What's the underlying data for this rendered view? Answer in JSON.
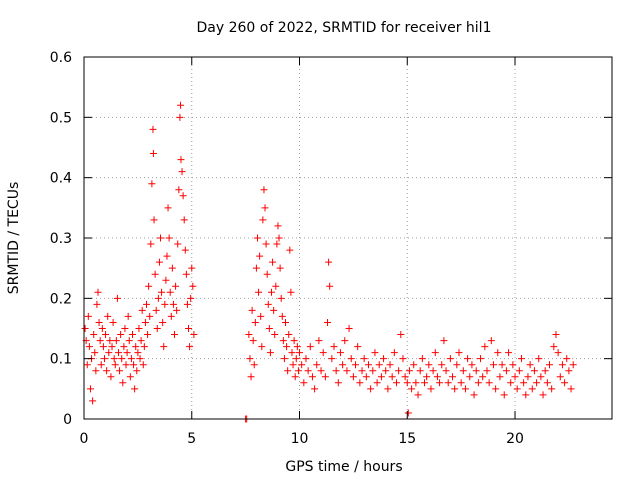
{
  "chart_data": {
    "type": "scatter",
    "title": "Day 260 of 2022, SRMTID for receiver hil1",
    "xlabel": "GPS time / hours",
    "ylabel": "SRMTID / TECUs",
    "xlim": [
      0,
      24.5
    ],
    "ylim": [
      0,
      0.6
    ],
    "xticks": [
      0,
      5,
      10,
      15,
      20
    ],
    "xtick_labels": [
      "0",
      "5",
      "10",
      "15",
      "20"
    ],
    "yticks": [
      0,
      0.1,
      0.2,
      0.3,
      0.4,
      0.5,
      0.6
    ],
    "ytick_labels": [
      "0",
      "0.1",
      "0.2",
      "0.3",
      "0.4",
      "0.5",
      "0.6"
    ],
    "grid": true,
    "marker": "+",
    "color": "#ff0000",
    "series": [
      {
        "name": "hil1",
        "points": [
          [
            0.05,
            0.15
          ],
          [
            0.1,
            0.13
          ],
          [
            0.15,
            0.09
          ],
          [
            0.2,
            0.17
          ],
          [
            0.25,
            0.12
          ],
          [
            0.3,
            0.05
          ],
          [
            0.35,
            0.1
          ],
          [
            0.4,
            0.03
          ],
          [
            0.45,
            0.14
          ],
          [
            0.5,
            0.11
          ],
          [
            0.55,
            0.08
          ],
          [
            0.6,
            0.19
          ],
          [
            0.65,
            0.21
          ],
          [
            0.7,
            0.16
          ],
          [
            0.75,
            0.13
          ],
          [
            0.8,
            0.09
          ],
          [
            0.85,
            0.15
          ],
          [
            0.9,
            0.12
          ],
          [
            0.95,
            0.1
          ],
          [
            1.0,
            0.14
          ],
          [
            1.05,
            0.08
          ],
          [
            1.1,
            0.17
          ],
          [
            1.15,
            0.11
          ],
          [
            1.2,
            0.13
          ],
          [
            1.25,
            0.07
          ],
          [
            1.3,
            0.12
          ],
          [
            1.35,
            0.16
          ],
          [
            1.4,
            0.1
          ],
          [
            1.45,
            0.09
          ],
          [
            1.5,
            0.13
          ],
          [
            1.55,
            0.2
          ],
          [
            1.6,
            0.11
          ],
          [
            1.65,
            0.08
          ],
          [
            1.7,
            0.14
          ],
          [
            1.75,
            0.1
          ],
          [
            1.8,
            0.06
          ],
          [
            1.85,
            0.12
          ],
          [
            1.9,
            0.15
          ],
          [
            1.95,
            0.09
          ],
          [
            2.0,
            0.11
          ],
          [
            2.05,
            0.17
          ],
          [
            2.1,
            0.13
          ],
          [
            2.15,
            0.07
          ],
          [
            2.2,
            0.1
          ],
          [
            2.25,
            0.14
          ],
          [
            2.3,
            0.09
          ],
          [
            2.35,
            0.05
          ],
          [
            2.4,
            0.12
          ],
          [
            2.45,
            0.08
          ],
          [
            2.5,
            0.11
          ],
          [
            2.55,
            0.15
          ],
          [
            2.6,
            0.1
          ],
          [
            2.65,
            0.13
          ],
          [
            2.7,
            0.18
          ],
          [
            2.75,
            0.09
          ],
          [
            2.8,
            0.12
          ],
          [
            2.85,
            0.16
          ],
          [
            2.9,
            0.19
          ],
          [
            2.95,
            0.14
          ],
          [
            3.0,
            0.22
          ],
          [
            3.05,
            0.17
          ],
          [
            3.1,
            0.29
          ],
          [
            3.15,
            0.39
          ],
          [
            3.2,
            0.48
          ],
          [
            3.22,
            0.44
          ],
          [
            3.25,
            0.33
          ],
          [
            3.3,
            0.24
          ],
          [
            3.35,
            0.18
          ],
          [
            3.4,
            0.15
          ],
          [
            3.45,
            0.2
          ],
          [
            3.5,
            0.26
          ],
          [
            3.55,
            0.3
          ],
          [
            3.6,
            0.21
          ],
          [
            3.65,
            0.16
          ],
          [
            3.7,
            0.12
          ],
          [
            3.75,
            0.19
          ],
          [
            3.8,
            0.23
          ],
          [
            3.85,
            0.27
          ],
          [
            3.9,
            0.35
          ],
          [
            3.95,
            0.3
          ],
          [
            4.0,
            0.21
          ],
          [
            4.05,
            0.17
          ],
          [
            4.1,
            0.25
          ],
          [
            4.15,
            0.19
          ],
          [
            4.2,
            0.14
          ],
          [
            4.25,
            0.22
          ],
          [
            4.3,
            0.18
          ],
          [
            4.35,
            0.29
          ],
          [
            4.4,
            0.38
          ],
          [
            4.45,
            0.5
          ],
          [
            4.48,
            0.52
          ],
          [
            4.5,
            0.43
          ],
          [
            4.55,
            0.41
          ],
          [
            4.6,
            0.37
          ],
          [
            4.65,
            0.33
          ],
          [
            4.7,
            0.28
          ],
          [
            4.75,
            0.24
          ],
          [
            4.8,
            0.19
          ],
          [
            4.85,
            0.15
          ],
          [
            4.9,
            0.12
          ],
          [
            4.95,
            0.2
          ],
          [
            5.0,
            0.25
          ],
          [
            5.05,
            0.22
          ],
          [
            5.1,
            0.14
          ],
          [
            7.5,
            0.0
          ],
          [
            7.55,
            0.0
          ],
          [
            7.65,
            0.14
          ],
          [
            7.7,
            0.1
          ],
          [
            7.75,
            0.07
          ],
          [
            7.8,
            0.18
          ],
          [
            7.85,
            0.13
          ],
          [
            7.9,
            0.09
          ],
          [
            7.95,
            0.16
          ],
          [
            8.0,
            0.25
          ],
          [
            8.05,
            0.3
          ],
          [
            8.1,
            0.21
          ],
          [
            8.15,
            0.27
          ],
          [
            8.2,
            0.17
          ],
          [
            8.25,
            0.12
          ],
          [
            8.3,
            0.33
          ],
          [
            8.35,
            0.38
          ],
          [
            8.4,
            0.35
          ],
          [
            8.45,
            0.29
          ],
          [
            8.5,
            0.24
          ],
          [
            8.55,
            0.19
          ],
          [
            8.6,
            0.15
          ],
          [
            8.65,
            0.11
          ],
          [
            8.7,
            0.21
          ],
          [
            8.75,
            0.26
          ],
          [
            8.8,
            0.18
          ],
          [
            8.85,
            0.14
          ],
          [
            8.9,
            0.22
          ],
          [
            8.95,
            0.29
          ],
          [
            9.0,
            0.32
          ],
          [
            9.05,
            0.3
          ],
          [
            9.1,
            0.25
          ],
          [
            9.15,
            0.2
          ],
          [
            9.2,
            0.17
          ],
          [
            9.25,
            0.13
          ],
          [
            9.3,
            0.1
          ],
          [
            9.35,
            0.16
          ],
          [
            9.4,
            0.12
          ],
          [
            9.45,
            0.08
          ],
          [
            9.5,
            0.14
          ],
          [
            9.55,
            0.28
          ],
          [
            9.6,
            0.21
          ],
          [
            9.65,
            0.11
          ],
          [
            9.7,
            0.09
          ],
          [
            9.75,
            0.13
          ],
          [
            9.8,
            0.07
          ],
          [
            9.85,
            0.1
          ],
          [
            9.9,
            0.12
          ],
          [
            9.95,
            0.08
          ],
          [
            10.0,
            0.11
          ],
          [
            10.1,
            0.09
          ],
          [
            10.2,
            0.06
          ],
          [
            10.3,
            0.1
          ],
          [
            10.4,
            0.08
          ],
          [
            10.5,
            0.12
          ],
          [
            10.6,
            0.07
          ],
          [
            10.7,
            0.05
          ],
          [
            10.8,
            0.09
          ],
          [
            10.9,
            0.13
          ],
          [
            11.0,
            0.08
          ],
          [
            11.1,
            0.11
          ],
          [
            11.2,
            0.07
          ],
          [
            11.3,
            0.16
          ],
          [
            11.35,
            0.26
          ],
          [
            11.4,
            0.22
          ],
          [
            11.5,
            0.1
          ],
          [
            11.6,
            0.12
          ],
          [
            11.7,
            0.08
          ],
          [
            11.8,
            0.06
          ],
          [
            11.9,
            0.11
          ],
          [
            12.0,
            0.09
          ],
          [
            12.1,
            0.13
          ],
          [
            12.2,
            0.08
          ],
          [
            12.3,
            0.15
          ],
          [
            12.4,
            0.1
          ],
          [
            12.5,
            0.07
          ],
          [
            12.6,
            0.09
          ],
          [
            12.7,
            0.12
          ],
          [
            12.8,
            0.06
          ],
          [
            12.9,
            0.08
          ],
          [
            13.0,
            0.1
          ],
          [
            13.1,
            0.07
          ],
          [
            13.2,
            0.09
          ],
          [
            13.3,
            0.05
          ],
          [
            13.4,
            0.08
          ],
          [
            13.5,
            0.11
          ],
          [
            13.6,
            0.06
          ],
          [
            13.7,
            0.09
          ],
          [
            13.8,
            0.07
          ],
          [
            13.9,
            0.1
          ],
          [
            14.0,
            0.08
          ],
          [
            14.1,
            0.05
          ],
          [
            14.2,
            0.09
          ],
          [
            14.3,
            0.07
          ],
          [
            14.4,
            0.11
          ],
          [
            14.5,
            0.06
          ],
          [
            14.6,
            0.08
          ],
          [
            14.7,
            0.14
          ],
          [
            14.8,
            0.1
          ],
          [
            14.9,
            0.07
          ],
          [
            15.0,
            0.06
          ],
          [
            15.05,
            0.01
          ],
          [
            15.1,
            0.08
          ],
          [
            15.2,
            0.05
          ],
          [
            15.3,
            0.09
          ],
          [
            15.4,
            0.06
          ],
          [
            15.5,
            0.04
          ],
          [
            15.6,
            0.08
          ],
          [
            15.7,
            0.1
          ],
          [
            15.8,
            0.06
          ],
          [
            15.9,
            0.07
          ],
          [
            16.0,
            0.09
          ],
          [
            16.1,
            0.05
          ],
          [
            16.2,
            0.08
          ],
          [
            16.3,
            0.11
          ],
          [
            16.4,
            0.07
          ],
          [
            16.5,
            0.06
          ],
          [
            16.6,
            0.09
          ],
          [
            16.7,
            0.13
          ],
          [
            16.8,
            0.08
          ],
          [
            16.9,
            0.06
          ],
          [
            17.0,
            0.1
          ],
          [
            17.1,
            0.07
          ],
          [
            17.2,
            0.05
          ],
          [
            17.3,
            0.09
          ],
          [
            17.4,
            0.11
          ],
          [
            17.5,
            0.06
          ],
          [
            17.6,
            0.08
          ],
          [
            17.7,
            0.05
          ],
          [
            17.8,
            0.1
          ],
          [
            17.9,
            0.07
          ],
          [
            18.0,
            0.09
          ],
          [
            18.1,
            0.04
          ],
          [
            18.2,
            0.08
          ],
          [
            18.3,
            0.06
          ],
          [
            18.4,
            0.1
          ],
          [
            18.5,
            0.07
          ],
          [
            18.6,
            0.12
          ],
          [
            18.7,
            0.08
          ],
          [
            18.8,
            0.06
          ],
          [
            18.9,
            0.13
          ],
          [
            19.0,
            0.09
          ],
          [
            19.1,
            0.05
          ],
          [
            19.2,
            0.11
          ],
          [
            19.3,
            0.07
          ],
          [
            19.4,
            0.09
          ],
          [
            19.5,
            0.04
          ],
          [
            19.6,
            0.08
          ],
          [
            19.7,
            0.11
          ],
          [
            19.8,
            0.06
          ],
          [
            19.9,
            0.09
          ],
          [
            20.0,
            0.07
          ],
          [
            20.1,
            0.05
          ],
          [
            20.2,
            0.08
          ],
          [
            20.3,
            0.1
          ],
          [
            20.4,
            0.06
          ],
          [
            20.5,
            0.04
          ],
          [
            20.6,
            0.07
          ],
          [
            20.7,
            0.09
          ],
          [
            20.8,
            0.05
          ],
          [
            20.9,
            0.08
          ],
          [
            21.0,
            0.06
          ],
          [
            21.1,
            0.1
          ],
          [
            21.2,
            0.07
          ],
          [
            21.3,
            0.04
          ],
          [
            21.4,
            0.08
          ],
          [
            21.5,
            0.06
          ],
          [
            21.6,
            0.09
          ],
          [
            21.7,
            0.05
          ],
          [
            21.8,
            0.12
          ],
          [
            21.9,
            0.14
          ],
          [
            22.0,
            0.11
          ],
          [
            22.1,
            0.07
          ],
          [
            22.2,
            0.09
          ],
          [
            22.3,
            0.06
          ],
          [
            22.4,
            0.1
          ],
          [
            22.5,
            0.08
          ],
          [
            22.6,
            0.05
          ],
          [
            22.7,
            0.09
          ]
        ]
      }
    ]
  }
}
